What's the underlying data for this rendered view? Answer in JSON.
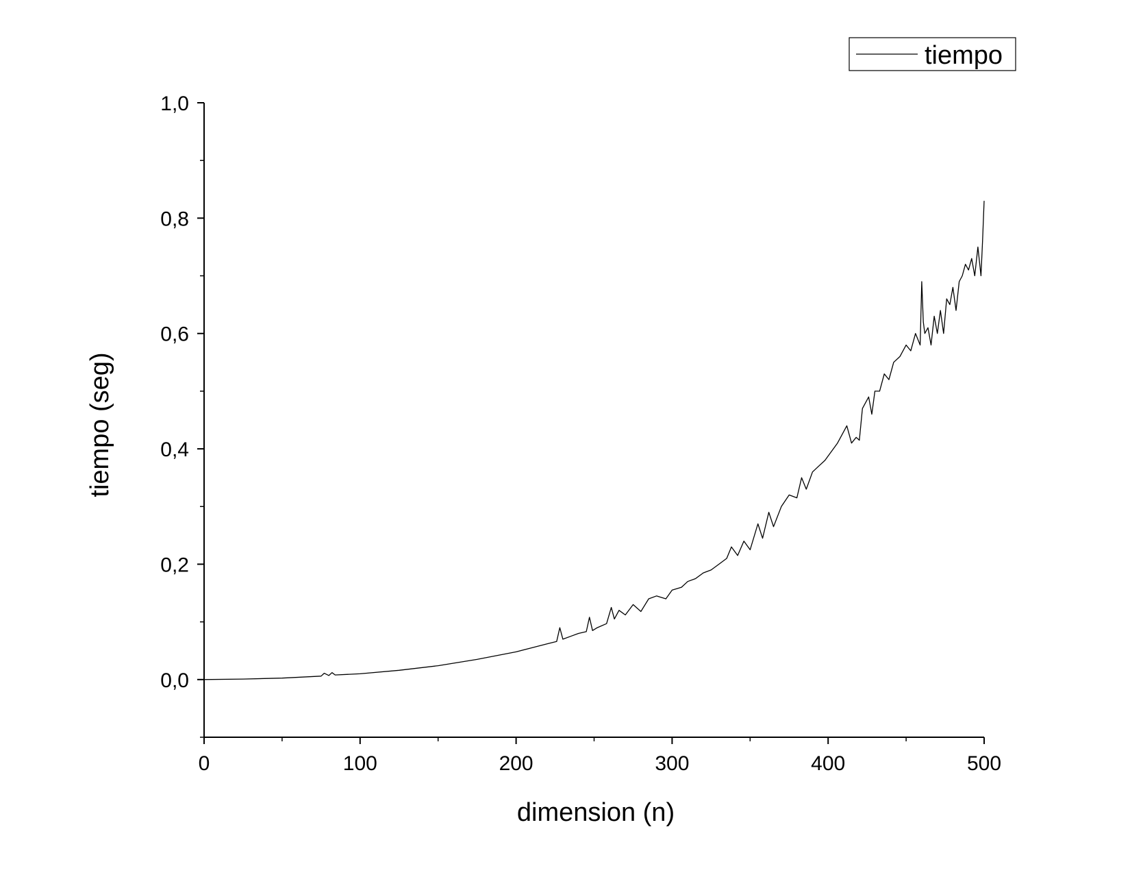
{
  "chart_data": {
    "type": "line",
    "xlabel": "dimension (n)",
    "ylabel": "tiempo (seg)",
    "xlim": [
      0,
      500
    ],
    "ylim": [
      -0.1,
      1.0
    ],
    "x_ticks": [
      0,
      100,
      200,
      300,
      400,
      500
    ],
    "x_tick_labels": [
      "0",
      "100",
      "200",
      "300",
      "400",
      "500"
    ],
    "y_ticks": [
      0.0,
      0.2,
      0.4,
      0.6,
      0.8,
      1.0
    ],
    "y_tick_labels": [
      "0,0",
      "0,2",
      "0,4",
      "0,6",
      "0,8",
      "1,0"
    ],
    "grid": false,
    "legend_position": "top-right",
    "line_color": "#000000",
    "series": [
      {
        "name": "tiempo",
        "x": [
          0,
          25,
          50,
          75,
          77,
          80,
          82,
          84,
          100,
          125,
          150,
          175,
          200,
          210,
          220,
          226,
          228,
          230,
          235,
          240,
          245,
          247,
          249,
          252,
          258,
          261,
          263,
          266,
          270,
          275,
          280,
          285,
          290,
          296,
          300,
          306,
          310,
          315,
          320,
          325,
          330,
          335,
          338,
          342,
          346,
          350,
          355,
          358,
          362,
          365,
          370,
          375,
          380,
          383,
          386,
          390,
          394,
          398,
          402,
          406,
          410,
          412,
          415,
          418,
          420,
          422,
          424,
          426,
          428,
          430,
          433,
          436,
          439,
          442,
          446,
          450,
          453,
          456,
          459,
          460,
          461,
          462,
          464,
          466,
          468,
          470,
          472,
          474,
          476,
          478,
          480,
          482,
          484,
          486,
          488,
          490,
          492,
          494,
          496,
          498,
          499,
          500
        ],
        "values": [
          0.0,
          0.0008,
          0.0025,
          0.006,
          0.011,
          0.007,
          0.012,
          0.008,
          0.01,
          0.016,
          0.024,
          0.035,
          0.048,
          0.055,
          0.062,
          0.066,
          0.09,
          0.07,
          0.075,
          0.08,
          0.083,
          0.108,
          0.085,
          0.09,
          0.097,
          0.125,
          0.105,
          0.12,
          0.112,
          0.13,
          0.118,
          0.14,
          0.145,
          0.14,
          0.155,
          0.16,
          0.17,
          0.175,
          0.185,
          0.19,
          0.2,
          0.21,
          0.23,
          0.215,
          0.24,
          0.225,
          0.27,
          0.245,
          0.29,
          0.265,
          0.3,
          0.32,
          0.315,
          0.35,
          0.33,
          0.36,
          0.37,
          0.38,
          0.395,
          0.41,
          0.43,
          0.44,
          0.41,
          0.42,
          0.415,
          0.47,
          0.48,
          0.49,
          0.46,
          0.5,
          0.5,
          0.53,
          0.52,
          0.55,
          0.56,
          0.58,
          0.57,
          0.6,
          0.58,
          0.69,
          0.62,
          0.6,
          0.61,
          0.58,
          0.63,
          0.6,
          0.64,
          0.6,
          0.66,
          0.65,
          0.68,
          0.64,
          0.69,
          0.7,
          0.72,
          0.71,
          0.73,
          0.7,
          0.75,
          0.7,
          0.76,
          0.83
        ]
      }
    ]
  }
}
